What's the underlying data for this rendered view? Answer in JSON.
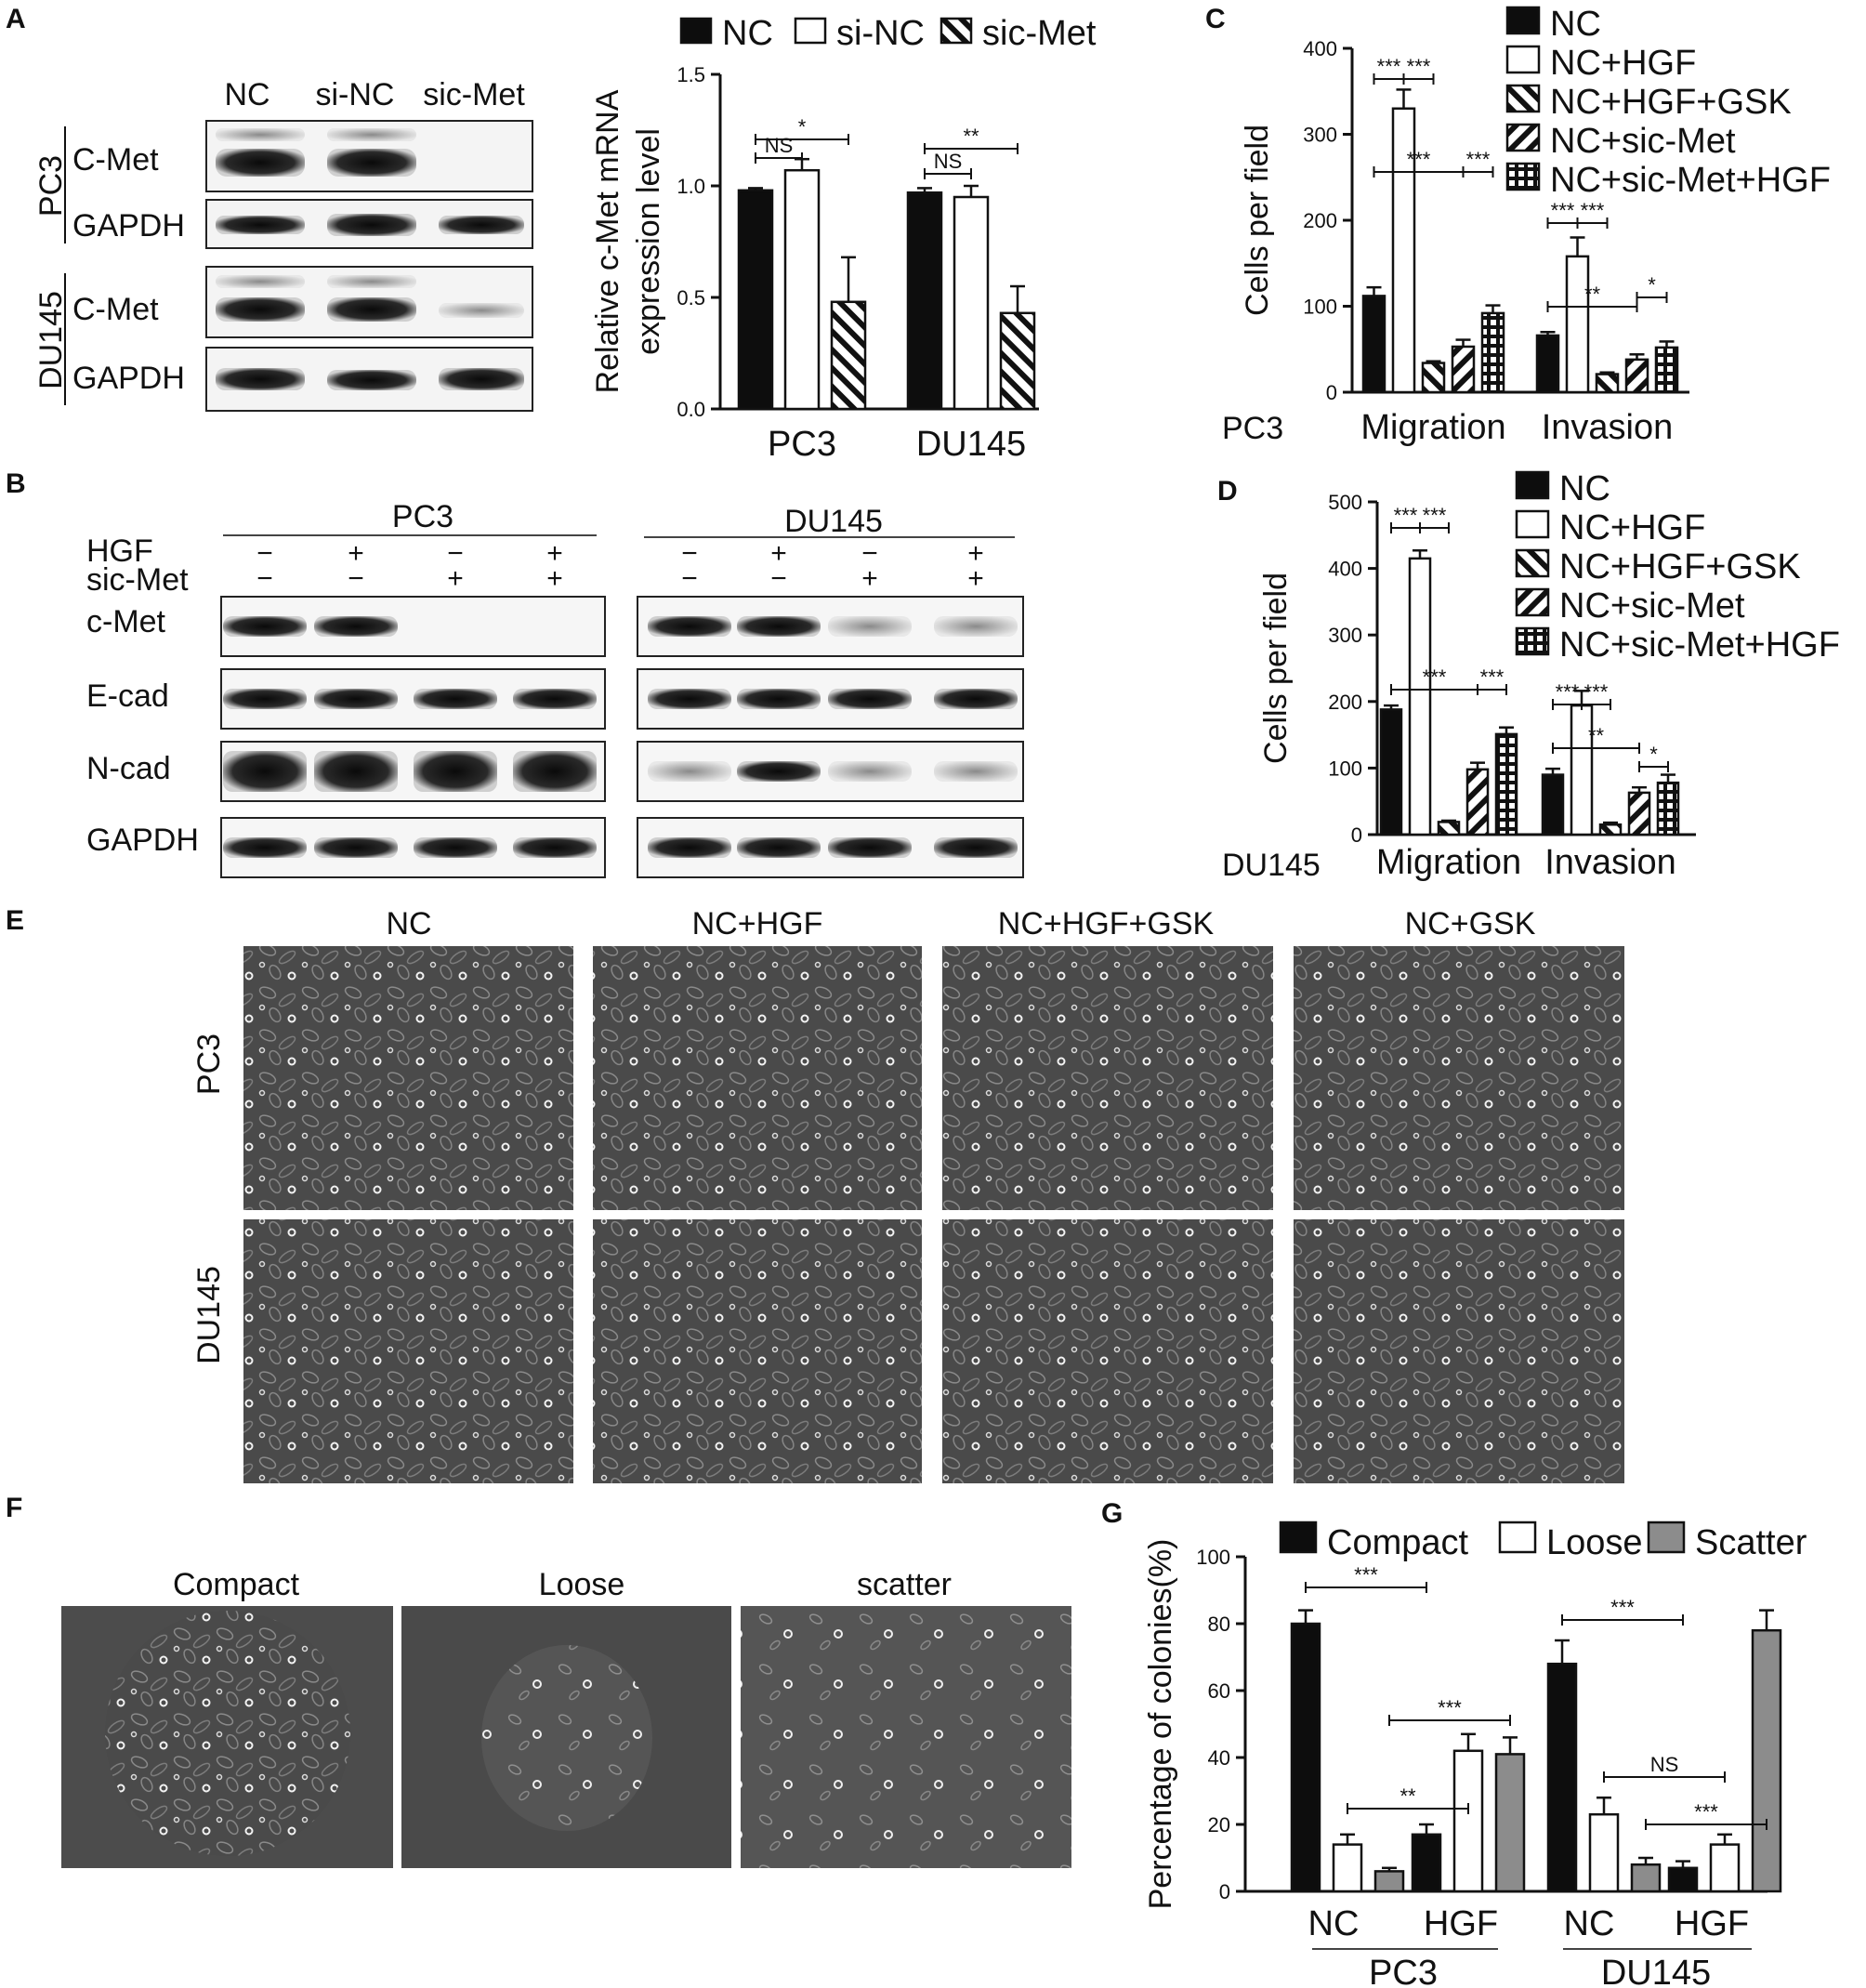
{
  "panels": {
    "A": {
      "label": "A",
      "blot": {
        "lanes": [
          "NC",
          "si-NC",
          "sic-Met"
        ],
        "groups": [
          {
            "cell_line": "PC3",
            "rows": [
              "C-Met",
              "GAPDH"
            ]
          },
          {
            "cell_line": "DU145",
            "rows": [
              "C-Met",
              "GAPDH"
            ]
          }
        ]
      }
    },
    "B": {
      "label": "B",
      "cell_lines": [
        "PC3",
        "DU145"
      ],
      "treatment_rows": [
        {
          "name": "HGF",
          "marks": [
            "−",
            "+",
            "−",
            "+"
          ]
        },
        {
          "name": "sic-Met",
          "marks": [
            "−",
            "−",
            "+",
            "+"
          ]
        }
      ],
      "rows": [
        "c-Met",
        "E-cad",
        "N-cad",
        "GAPDH"
      ]
    },
    "C": {
      "label": "C",
      "cell_line": "PC3"
    },
    "D": {
      "label": "D",
      "cell_line": "DU145"
    },
    "E": {
      "label": "E",
      "columns": [
        "NC",
        "NC+HGF",
        "NC+HGF+GSK",
        "NC+GSK"
      ],
      "rows": [
        "PC3",
        "DU145"
      ]
    },
    "F": {
      "label": "F",
      "images": [
        "Compact",
        "Loose",
        "scatter"
      ]
    },
    "G": {
      "label": "G"
    }
  },
  "colors": {
    "black": "#0d0d0d",
    "white": "#ffffff",
    "gray": "#8c8c8c",
    "axis": "#111111"
  },
  "chart_data": [
    {
      "id": "A-bar",
      "type": "bar",
      "categories": [
        "PC3",
        "DU145"
      ],
      "series": [
        {
          "name": "NC",
          "values": [
            0.98,
            0.97
          ],
          "errors": [
            0.01,
            0.02
          ],
          "fill": "black"
        },
        {
          "name": "si-NC",
          "values": [
            1.07,
            0.95
          ],
          "errors": [
            0.05,
            0.05
          ],
          "fill": "white"
        },
        {
          "name": "sic-Met",
          "values": [
            0.48,
            0.43
          ],
          "errors": [
            0.2,
            0.12
          ],
          "fill": "backslash"
        }
      ],
      "ylabel": "Relative c-Met mRNA expression level",
      "ylabel_lines": [
        "Relative c-Met mRNA",
        "expression level"
      ],
      "ylim": [
        0,
        1.5
      ],
      "yticks": [
        0.0,
        0.5,
        1.0,
        1.5
      ],
      "ytick_labels": [
        "0.0",
        "0.5",
        "1.0",
        "1.5"
      ],
      "legend": "top",
      "significance": [
        {
          "group": 0,
          "from": 0,
          "to": 1,
          "label": "NS"
        },
        {
          "group": 0,
          "from": 0,
          "to": 2,
          "label": "*"
        },
        {
          "group": 1,
          "from": 0,
          "to": 1,
          "label": "NS"
        },
        {
          "group": 1,
          "from": 0,
          "to": 2,
          "label": "**"
        }
      ]
    },
    {
      "id": "C-bar",
      "type": "bar",
      "categories": [
        "Migration",
        "Invasion"
      ],
      "series": [
        {
          "name": "NC",
          "values": [
            112,
            66
          ],
          "errors": [
            10,
            4
          ],
          "fill": "black"
        },
        {
          "name": "NC+HGF",
          "values": [
            330,
            158
          ],
          "errors": [
            22,
            22
          ],
          "fill": "white"
        },
        {
          "name": "NC+HGF+GSK",
          "values": [
            34,
            21
          ],
          "errors": [
            2,
            2
          ],
          "fill": "backslash"
        },
        {
          "name": "NC+sic-Met",
          "values": [
            53,
            38
          ],
          "errors": [
            8,
            6
          ],
          "fill": "slash"
        },
        {
          "name": "NC+sic-Met+HGF",
          "values": [
            92,
            52
          ],
          "errors": [
            9,
            7
          ],
          "fill": "grid"
        }
      ],
      "ylabel": "Cells per field",
      "ylim": [
        0,
        400
      ],
      "yticks": [
        0,
        100,
        200,
        300,
        400
      ],
      "ytick_labels": [
        "0",
        "100",
        "200",
        "300",
        "400"
      ],
      "legend": "right",
      "significance": [
        {
          "group": 0,
          "from": 0,
          "to": 1,
          "label": "***"
        },
        {
          "group": 0,
          "from": 1,
          "to": 2,
          "label": "***"
        },
        {
          "group": 0,
          "from": 0,
          "to": 3,
          "label": "***"
        },
        {
          "group": 0,
          "from": 3,
          "to": 4,
          "label": "***"
        },
        {
          "group": 1,
          "from": 0,
          "to": 1,
          "label": "***"
        },
        {
          "group": 1,
          "from": 1,
          "to": 2,
          "label": "***"
        },
        {
          "group": 1,
          "from": 0,
          "to": 3,
          "label": "**"
        },
        {
          "group": 1,
          "from": 3,
          "to": 4,
          "label": "*"
        }
      ]
    },
    {
      "id": "D-bar",
      "type": "bar",
      "categories": [
        "Migration",
        "Invasion"
      ],
      "series": [
        {
          "name": "NC",
          "values": [
            188,
            90
          ],
          "errors": [
            6,
            9
          ],
          "fill": "black"
        },
        {
          "name": "NC+HGF",
          "values": [
            415,
            194
          ],
          "errors": [
            12,
            22
          ],
          "fill": "white"
        },
        {
          "name": "NC+HGF+GSK",
          "values": [
            19,
            15
          ],
          "errors": [
            2,
            3
          ],
          "fill": "backslash"
        },
        {
          "name": "NC+sic-Met",
          "values": [
            98,
            63
          ],
          "errors": [
            10,
            8
          ],
          "fill": "slash"
        },
        {
          "name": "NC+sic-Met+HGF",
          "values": [
            151,
            78
          ],
          "errors": [
            10,
            12
          ],
          "fill": "grid"
        }
      ],
      "ylabel": "Cells per field",
      "ylim": [
        0,
        500
      ],
      "yticks": [
        0,
        100,
        200,
        300,
        400,
        500
      ],
      "ytick_labels": [
        "0",
        "100",
        "200",
        "300",
        "400",
        "500"
      ],
      "legend": "right",
      "significance": [
        {
          "group": 0,
          "from": 0,
          "to": 1,
          "label": "***"
        },
        {
          "group": 0,
          "from": 1,
          "to": 2,
          "label": "***"
        },
        {
          "group": 0,
          "from": 0,
          "to": 3,
          "label": "***"
        },
        {
          "group": 0,
          "from": 3,
          "to": 4,
          "label": "***"
        },
        {
          "group": 1,
          "from": 0,
          "to": 1,
          "label": "***"
        },
        {
          "group": 1,
          "from": 1,
          "to": 2,
          "label": "***"
        },
        {
          "group": 1,
          "from": 0,
          "to": 3,
          "label": "**"
        },
        {
          "group": 1,
          "from": 3,
          "to": 4,
          "label": "*"
        }
      ]
    },
    {
      "id": "G-bar",
      "type": "bar",
      "categories": [
        "NC",
        "HGF",
        "NC",
        "HGF"
      ],
      "super_categories": [
        "PC3",
        "DU145"
      ],
      "series": [
        {
          "name": "Compact",
          "values": [
            80,
            17,
            68,
            7
          ],
          "errors": [
            4,
            3,
            7,
            2
          ],
          "fill": "black"
        },
        {
          "name": "Loose",
          "values": [
            14,
            42,
            23,
            14
          ],
          "errors": [
            3,
            5,
            5,
            3
          ],
          "fill": "white"
        },
        {
          "name": "Scatter",
          "values": [
            6,
            41,
            8,
            78
          ],
          "errors": [
            1,
            5,
            2,
            6
          ],
          "fill": "gray"
        }
      ],
      "ylabel": "Percentage of colonies(%)",
      "ylim": [
        0,
        100
      ],
      "yticks": [
        0,
        20,
        40,
        60,
        80,
        100
      ],
      "ytick_labels": [
        "0",
        "20",
        "40",
        "60",
        "80",
        "100"
      ],
      "legend": "top",
      "significance": [
        {
          "c1": 0,
          "s1": 0,
          "c2": 1,
          "s2": 0,
          "label": "***"
        },
        {
          "c1": 0,
          "s1": 1,
          "c2": 1,
          "s2": 1,
          "label": "**"
        },
        {
          "c1": 0,
          "s1": 2,
          "c2": 1,
          "s2": 2,
          "label": "***"
        },
        {
          "c1": 2,
          "s1": 0,
          "c2": 3,
          "s2": 0,
          "label": "***"
        },
        {
          "c1": 2,
          "s1": 1,
          "c2": 3,
          "s2": 1,
          "label": "NS"
        },
        {
          "c1": 2,
          "s1": 2,
          "c2": 3,
          "s2": 2,
          "label": "***"
        }
      ]
    }
  ]
}
